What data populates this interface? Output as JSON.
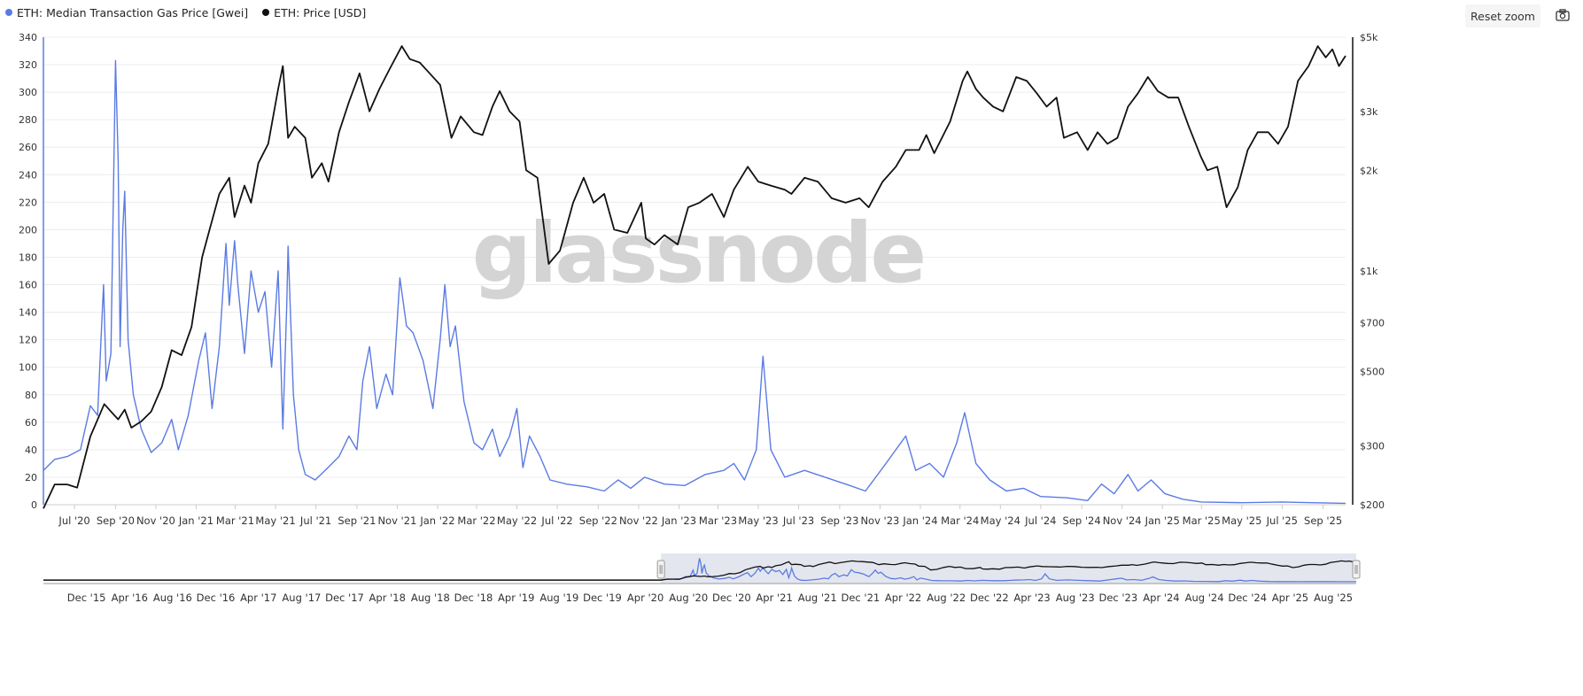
{
  "legend": [
    {
      "label": "ETH: Median Transaction Gas Price [Gwei]",
      "color": "#5b7be3"
    },
    {
      "label": "ETH: Price [USD]",
      "color": "#111111"
    }
  ],
  "toolbar": {
    "reset_zoom": "Reset zoom",
    "export_icon": "camera-icon"
  },
  "watermark": "glassnode",
  "chart_data": {
    "type": "line",
    "x_range": [
      "2020-05-15",
      "2025-10-05"
    ],
    "x_ticks": [
      "Jul '20",
      "Sep '20",
      "Nov '20",
      "Jan '21",
      "Mar '21",
      "May '21",
      "Jul '21",
      "Sep '21",
      "Nov '21",
      "Jan '22",
      "Mar '22",
      "May '22",
      "Jul '22",
      "Sep '22",
      "Nov '22",
      "Jan '23",
      "Mar '23",
      "May '23",
      "Jul '23",
      "Sep '23",
      "Nov '23",
      "Jan '24",
      "Mar '24",
      "May '24",
      "Jul '24",
      "Sep '24",
      "Nov '24",
      "Jan '25",
      "Mar '25",
      "May '25",
      "Jul '25",
      "Sep '25"
    ],
    "y_left": {
      "min": 0,
      "max": 340,
      "ticks": [
        "0",
        "20",
        "40",
        "60",
        "80",
        "100",
        "120",
        "140",
        "160",
        "180",
        "200",
        "220",
        "240",
        "260",
        "280",
        "300",
        "320",
        "340"
      ]
    },
    "y_right": {
      "scale": "log",
      "min": 200,
      "max": 5000,
      "ticks": [
        {
          "v": 200,
          "label": "$200"
        },
        {
          "v": 300,
          "label": "$300"
        },
        {
          "v": 500,
          "label": "$500"
        },
        {
          "v": 700,
          "label": "$700"
        },
        {
          "v": 1000,
          "label": "$1k"
        },
        {
          "v": 2000,
          "label": "$2k"
        },
        {
          "v": 3000,
          "label": "$3k"
        },
        {
          "v": 5000,
          "label": "$5k"
        }
      ]
    },
    "grid": true,
    "series": [
      {
        "name": "ETH: Median Transaction Gas Price [Gwei]",
        "axis": "left",
        "color": "#5b7be3",
        "points": [
          [
            "2020-05-15",
            25
          ],
          [
            "2020-06-01",
            33
          ],
          [
            "2020-06-20",
            35
          ],
          [
            "2020-07-10",
            40
          ],
          [
            "2020-07-25",
            72
          ],
          [
            "2020-08-05",
            65
          ],
          [
            "2020-08-10",
            120
          ],
          [
            "2020-08-14",
            160
          ],
          [
            "2020-08-18",
            90
          ],
          [
            "2020-08-25",
            110
          ],
          [
            "2020-08-28",
            200
          ],
          [
            "2020-09-01",
            323
          ],
          [
            "2020-09-05",
            250
          ],
          [
            "2020-09-08",
            115
          ],
          [
            "2020-09-12",
            200
          ],
          [
            "2020-09-15",
            228
          ],
          [
            "2020-09-20",
            120
          ],
          [
            "2020-09-28",
            80
          ],
          [
            "2020-10-10",
            55
          ],
          [
            "2020-10-25",
            38
          ],
          [
            "2020-11-10",
            45
          ],
          [
            "2020-11-25",
            62
          ],
          [
            "2020-12-05",
            40
          ],
          [
            "2020-12-20",
            65
          ],
          [
            "2021-01-05",
            105
          ],
          [
            "2021-01-15",
            125
          ],
          [
            "2021-01-25",
            70
          ],
          [
            "2021-02-05",
            115
          ],
          [
            "2021-02-15",
            190
          ],
          [
            "2021-02-20",
            145
          ],
          [
            "2021-02-28",
            192
          ],
          [
            "2021-03-05",
            160
          ],
          [
            "2021-03-15",
            110
          ],
          [
            "2021-03-25",
            170
          ],
          [
            "2021-04-05",
            140
          ],
          [
            "2021-04-15",
            155
          ],
          [
            "2021-04-25",
            100
          ],
          [
            "2021-05-05",
            170
          ],
          [
            "2021-05-12",
            55
          ],
          [
            "2021-05-18",
            145
          ],
          [
            "2021-05-20",
            188
          ],
          [
            "2021-05-28",
            80
          ],
          [
            "2021-06-05",
            40
          ],
          [
            "2021-06-15",
            22
          ],
          [
            "2021-06-30",
            18
          ],
          [
            "2021-07-15",
            25
          ],
          [
            "2021-08-05",
            35
          ],
          [
            "2021-08-20",
            50
          ],
          [
            "2021-09-01",
            40
          ],
          [
            "2021-09-10",
            90
          ],
          [
            "2021-09-20",
            115
          ],
          [
            "2021-10-01",
            70
          ],
          [
            "2021-10-15",
            95
          ],
          [
            "2021-10-25",
            80
          ],
          [
            "2021-11-05",
            165
          ],
          [
            "2021-11-15",
            130
          ],
          [
            "2021-11-25",
            125
          ],
          [
            "2021-12-10",
            105
          ],
          [
            "2021-12-25",
            70
          ],
          [
            "2022-01-05",
            120
          ],
          [
            "2022-01-12",
            160
          ],
          [
            "2022-01-20",
            115
          ],
          [
            "2022-01-28",
            130
          ],
          [
            "2022-02-10",
            75
          ],
          [
            "2022-02-25",
            45
          ],
          [
            "2022-03-10",
            40
          ],
          [
            "2022-03-25",
            55
          ],
          [
            "2022-04-05",
            35
          ],
          [
            "2022-04-20",
            50
          ],
          [
            "2022-05-01",
            70
          ],
          [
            "2022-05-10",
            27
          ],
          [
            "2022-05-20",
            50
          ],
          [
            "2022-06-05",
            35
          ],
          [
            "2022-06-20",
            18
          ],
          [
            "2022-07-15",
            15
          ],
          [
            "2022-08-15",
            13
          ],
          [
            "2022-09-10",
            10
          ],
          [
            "2022-10-01",
            18
          ],
          [
            "2022-10-20",
            12
          ],
          [
            "2022-11-10",
            20
          ],
          [
            "2022-12-10",
            15
          ],
          [
            "2023-01-10",
            14
          ],
          [
            "2023-02-10",
            22
          ],
          [
            "2023-03-10",
            25
          ],
          [
            "2023-03-25",
            30
          ],
          [
            "2023-04-10",
            18
          ],
          [
            "2023-04-28",
            40
          ],
          [
            "2023-05-08",
            108
          ],
          [
            "2023-05-20",
            40
          ],
          [
            "2023-06-10",
            20
          ],
          [
            "2023-07-10",
            25
          ],
          [
            "2023-08-10",
            20
          ],
          [
            "2023-09-10",
            15
          ],
          [
            "2023-10-10",
            10
          ],
          [
            "2023-11-10",
            30
          ],
          [
            "2023-11-25",
            40
          ],
          [
            "2023-12-10",
            50
          ],
          [
            "2023-12-25",
            25
          ],
          [
            "2024-01-15",
            30
          ],
          [
            "2024-02-05",
            20
          ],
          [
            "2024-02-25",
            45
          ],
          [
            "2024-03-08",
            67
          ],
          [
            "2024-03-25",
            30
          ],
          [
            "2024-04-15",
            18
          ],
          [
            "2024-05-10",
            10
          ],
          [
            "2024-06-05",
            12
          ],
          [
            "2024-07-01",
            6
          ],
          [
            "2024-08-10",
            5
          ],
          [
            "2024-09-10",
            3
          ],
          [
            "2024-10-01",
            15
          ],
          [
            "2024-10-20",
            8
          ],
          [
            "2024-11-10",
            22
          ],
          [
            "2024-11-25",
            10
          ],
          [
            "2024-12-15",
            18
          ],
          [
            "2025-01-05",
            8
          ],
          [
            "2025-02-01",
            4
          ],
          [
            "2025-03-01",
            2
          ],
          [
            "2025-05-01",
            1.5
          ],
          [
            "2025-07-01",
            2
          ],
          [
            "2025-08-15",
            1.5
          ],
          [
            "2025-10-05",
            1
          ]
        ]
      },
      {
        "name": "ETH: Price [USD]",
        "axis": "right",
        "color": "#111111",
        "points": [
          [
            "2020-05-15",
            195
          ],
          [
            "2020-06-01",
            230
          ],
          [
            "2020-06-20",
            230
          ],
          [
            "2020-07-05",
            225
          ],
          [
            "2020-07-25",
            320
          ],
          [
            "2020-08-15",
            400
          ],
          [
            "2020-08-25",
            380
          ],
          [
            "2020-09-05",
            360
          ],
          [
            "2020-09-15",
            385
          ],
          [
            "2020-09-25",
            340
          ],
          [
            "2020-10-10",
            355
          ],
          [
            "2020-10-25",
            380
          ],
          [
            "2020-11-10",
            450
          ],
          [
            "2020-11-25",
            580
          ],
          [
            "2020-12-10",
            560
          ],
          [
            "2020-12-25",
            680
          ],
          [
            "2021-01-10",
            1100
          ],
          [
            "2021-01-20",
            1300
          ],
          [
            "2021-02-05",
            1700
          ],
          [
            "2021-02-20",
            1900
          ],
          [
            "2021-02-28",
            1450
          ],
          [
            "2021-03-15",
            1800
          ],
          [
            "2021-03-25",
            1600
          ],
          [
            "2021-04-05",
            2100
          ],
          [
            "2021-04-20",
            2400
          ],
          [
            "2021-05-05",
            3500
          ],
          [
            "2021-05-12",
            4100
          ],
          [
            "2021-05-20",
            2500
          ],
          [
            "2021-05-30",
            2700
          ],
          [
            "2021-06-15",
            2500
          ],
          [
            "2021-06-25",
            1900
          ],
          [
            "2021-07-10",
            2100
          ],
          [
            "2021-07-20",
            1850
          ],
          [
            "2021-08-05",
            2600
          ],
          [
            "2021-08-20",
            3200
          ],
          [
            "2021-09-05",
            3900
          ],
          [
            "2021-09-20",
            3000
          ],
          [
            "2021-10-05",
            3500
          ],
          [
            "2021-10-20",
            4000
          ],
          [
            "2021-11-08",
            4700
          ],
          [
            "2021-11-20",
            4300
          ],
          [
            "2021-12-05",
            4200
          ],
          [
            "2021-12-20",
            3900
          ],
          [
            "2022-01-05",
            3600
          ],
          [
            "2022-01-22",
            2500
          ],
          [
            "2022-02-05",
            2900
          ],
          [
            "2022-02-25",
            2600
          ],
          [
            "2022-03-10",
            2550
          ],
          [
            "2022-03-25",
            3100
          ],
          [
            "2022-04-05",
            3450
          ],
          [
            "2022-04-20",
            3000
          ],
          [
            "2022-05-05",
            2800
          ],
          [
            "2022-05-15",
            2000
          ],
          [
            "2022-06-01",
            1900
          ],
          [
            "2022-06-18",
            1050
          ],
          [
            "2022-07-05",
            1150
          ],
          [
            "2022-07-25",
            1600
          ],
          [
            "2022-08-10",
            1900
          ],
          [
            "2022-08-25",
            1600
          ],
          [
            "2022-09-10",
            1700
          ],
          [
            "2022-09-25",
            1330
          ],
          [
            "2022-10-15",
            1300
          ],
          [
            "2022-11-05",
            1600
          ],
          [
            "2022-11-12",
            1250
          ],
          [
            "2022-11-25",
            1200
          ],
          [
            "2022-12-10",
            1280
          ],
          [
            "2022-12-30",
            1200
          ],
          [
            "2023-01-15",
            1550
          ],
          [
            "2023-02-01",
            1600
          ],
          [
            "2023-02-20",
            1700
          ],
          [
            "2023-03-10",
            1450
          ],
          [
            "2023-03-25",
            1750
          ],
          [
            "2023-04-15",
            2050
          ],
          [
            "2023-05-01",
            1850
          ],
          [
            "2023-05-20",
            1800
          ],
          [
            "2023-06-10",
            1750
          ],
          [
            "2023-06-20",
            1700
          ],
          [
            "2023-07-10",
            1900
          ],
          [
            "2023-07-30",
            1850
          ],
          [
            "2023-08-20",
            1650
          ],
          [
            "2023-09-10",
            1600
          ],
          [
            "2023-10-01",
            1650
          ],
          [
            "2023-10-15",
            1550
          ],
          [
            "2023-11-05",
            1850
          ],
          [
            "2023-11-25",
            2050
          ],
          [
            "2023-12-10",
            2300
          ],
          [
            "2023-12-30",
            2300
          ],
          [
            "2024-01-10",
            2550
          ],
          [
            "2024-01-22",
            2250
          ],
          [
            "2024-02-15",
            2800
          ],
          [
            "2024-03-05",
            3700
          ],
          [
            "2024-03-12",
            3950
          ],
          [
            "2024-03-25",
            3500
          ],
          [
            "2024-04-05",
            3300
          ],
          [
            "2024-04-20",
            3100
          ],
          [
            "2024-05-05",
            3000
          ],
          [
            "2024-05-25",
            3800
          ],
          [
            "2024-06-10",
            3700
          ],
          [
            "2024-06-25",
            3400
          ],
          [
            "2024-07-10",
            3100
          ],
          [
            "2024-07-25",
            3300
          ],
          [
            "2024-08-05",
            2500
          ],
          [
            "2024-08-25",
            2600
          ],
          [
            "2024-09-10",
            2300
          ],
          [
            "2024-09-25",
            2600
          ],
          [
            "2024-10-10",
            2400
          ],
          [
            "2024-10-25",
            2500
          ],
          [
            "2024-11-10",
            3100
          ],
          [
            "2024-11-25",
            3400
          ],
          [
            "2024-12-10",
            3800
          ],
          [
            "2024-12-25",
            3450
          ],
          [
            "2025-01-10",
            3300
          ],
          [
            "2025-01-25",
            3300
          ],
          [
            "2025-02-10",
            2700
          ],
          [
            "2025-02-28",
            2200
          ],
          [
            "2025-03-10",
            2000
          ],
          [
            "2025-03-25",
            2050
          ],
          [
            "2025-04-08",
            1550
          ],
          [
            "2025-04-25",
            1780
          ],
          [
            "2025-05-10",
            2300
          ],
          [
            "2025-05-25",
            2600
          ],
          [
            "2025-06-10",
            2600
          ],
          [
            "2025-06-25",
            2400
          ],
          [
            "2025-07-10",
            2700
          ],
          [
            "2025-07-25",
            3700
          ],
          [
            "2025-08-10",
            4100
          ],
          [
            "2025-08-24",
            4700
          ],
          [
            "2025-09-05",
            4350
          ],
          [
            "2025-09-15",
            4600
          ],
          [
            "2025-09-25",
            4100
          ],
          [
            "2025-10-05",
            4400
          ]
        ]
      }
    ],
    "navigator": {
      "x_range": [
        "2015-08-01",
        "2025-10-05"
      ],
      "x_ticks": [
        "Dec '15",
        "Apr '16",
        "Aug '16",
        "Dec '16",
        "Apr '17",
        "Aug '17",
        "Dec '17",
        "Apr '18",
        "Aug '18",
        "Dec '18",
        "Apr '19",
        "Aug '19",
        "Dec '19",
        "Apr '20",
        "Aug '20",
        "Dec '20",
        "Apr '21",
        "Aug '21",
        "Dec '21",
        "Apr '22",
        "Aug '22",
        "Dec '22",
        "Apr '23",
        "Aug '23",
        "Dec '23",
        "Apr '24",
        "Aug '24",
        "Dec '24",
        "Apr '25",
        "Aug '25"
      ],
      "selected_range": [
        "2020-05-15",
        "2025-10-05"
      ]
    }
  }
}
